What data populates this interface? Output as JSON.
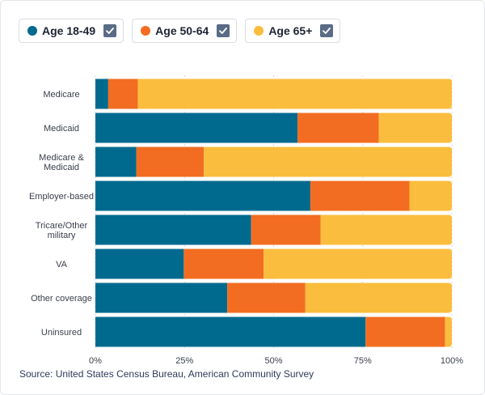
{
  "colors": {
    "age_18_49": "#006a8e",
    "age_50_64": "#f26d21",
    "age_65_plus": "#fbbd3d",
    "checkbox": "#5a6b85",
    "gridline": "#d6dae0",
    "tick_text": "#3a3f4b"
  },
  "legend": [
    {
      "label": "Age 18-49",
      "color": "#006a8e",
      "checked": true,
      "icon": "checkbox-checked-icon"
    },
    {
      "label": "Age 50-64",
      "color": "#f26d21",
      "checked": true,
      "icon": "checkbox-checked-icon"
    },
    {
      "label": "Age 65+",
      "color": "#fbbd3d",
      "checked": true,
      "icon": "checkbox-checked-icon"
    }
  ],
  "source": "Source: United States Census Bureau, American Community Survey",
  "chart_data": {
    "type": "bar",
    "orientation": "horizontal",
    "stacked": true,
    "normalized": true,
    "categories": [
      "Medicare",
      "Medicaid",
      "Medicare & Medicaid",
      "Employer-based",
      "Tricare/Other military",
      "VA",
      "Other coverage",
      "Uninsured"
    ],
    "category_lines": [
      [
        "Medicare"
      ],
      [
        "Medicaid"
      ],
      [
        "Medicare &",
        "Medicaid"
      ],
      [
        "Employer-based"
      ],
      [
        "Tricare/Other",
        "military"
      ],
      [
        "VA"
      ],
      [
        "Other coverage"
      ],
      [
        "Uninsured"
      ]
    ],
    "series": [
      {
        "name": "Age 18-49",
        "color": "#006a8e",
        "values": [
          3.6,
          56.7,
          11.5,
          60.3,
          43.7,
          24.8,
          37.0,
          75.8
        ]
      },
      {
        "name": "Age 50-64",
        "color": "#f26d21",
        "values": [
          8.3,
          22.8,
          18.9,
          27.8,
          19.5,
          22.4,
          21.9,
          22.3
        ]
      },
      {
        "name": "Age 65+",
        "color": "#fbbd3d",
        "values": [
          88.1,
          20.5,
          69.6,
          11.9,
          36.8,
          52.8,
          41.1,
          1.9
        ]
      }
    ],
    "xlim": [
      0,
      100
    ],
    "xticks": [
      "0%",
      "25%",
      "50%",
      "75%",
      "100%"
    ],
    "grid": true,
    "legend_position": "top-left"
  }
}
